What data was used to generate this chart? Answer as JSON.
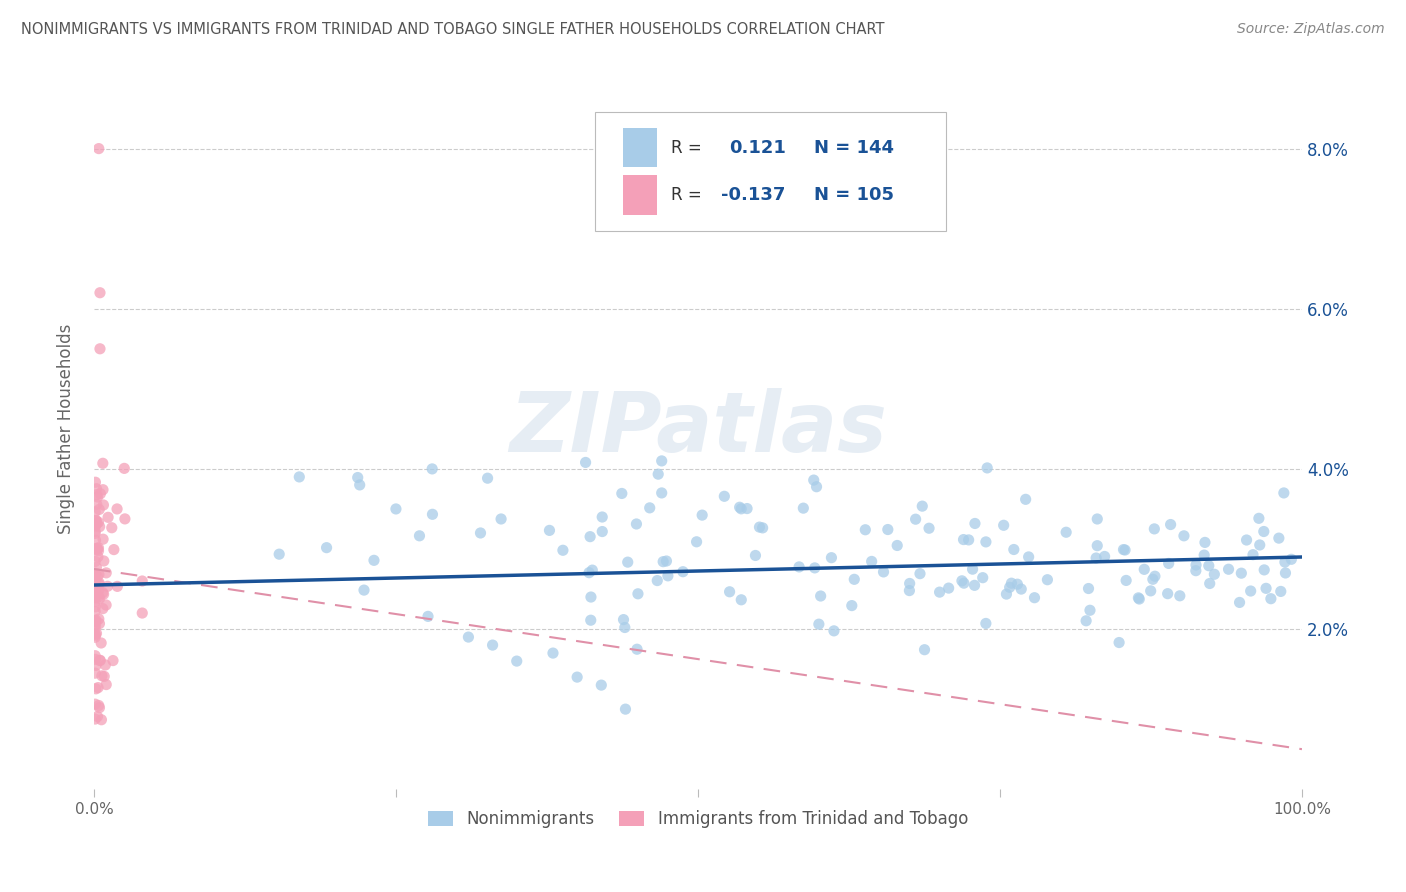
{
  "title": "NONIMMIGRANTS VS IMMIGRANTS FROM TRINIDAD AND TOBAGO SINGLE FATHER HOUSEHOLDS CORRELATION CHART",
  "source": "Source: ZipAtlas.com",
  "ylabel": "Single Father Households",
  "yticks_labels": [
    "2.0%",
    "4.0%",
    "6.0%",
    "8.0%"
  ],
  "ytick_vals": [
    0.02,
    0.04,
    0.06,
    0.08
  ],
  "legend_label1": "Nonimmigrants",
  "legend_label2": "Immigrants from Trinidad and Tobago",
  "R1": 0.121,
  "N1": 144,
  "R2": -0.137,
  "N2": 105,
  "blue_color": "#A8CCE8",
  "pink_color": "#F4A0B8",
  "blue_line_color": "#1A5296",
  "pink_line_color": "#E090A8",
  "legend_R_color": "#1A5296",
  "watermark": "ZIPatlas",
  "xlim": [
    0.0,
    1.0
  ],
  "ylim": [
    0.0,
    0.09
  ],
  "blue_trend_x": [
    0.0,
    1.0
  ],
  "blue_trend_y": [
    0.0255,
    0.029
  ],
  "pink_trend_x": [
    0.0,
    1.0
  ],
  "pink_trend_y": [
    0.0275,
    0.005
  ]
}
